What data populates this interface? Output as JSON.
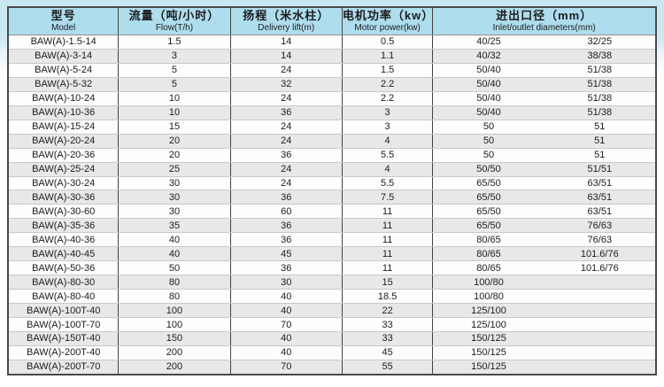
{
  "colors": {
    "header_bg": "#aedded",
    "row_white_bg": "#fdfdfd",
    "row_gray_bg": "#e8e8e8",
    "grid_dark": "#424242",
    "grid_light": "#c9c9c9",
    "outer_border": "#4a4a4a",
    "page_top_tint": "#c9e7f3"
  },
  "table": {
    "columns": [
      {
        "id": "model",
        "zh": "型号",
        "en": "Model"
      },
      {
        "id": "flow",
        "zh": "流量（吨/小时）",
        "en": "Flow(T/h)"
      },
      {
        "id": "lift",
        "zh": "扬程（米水柱）",
        "en": "Delivery lift(m)"
      },
      {
        "id": "power",
        "zh": "电机功率（kw）",
        "en": "Motor power(kw)"
      },
      {
        "id": "inout",
        "zh": "进出口径（mm）",
        "en": "Inlet/outlet  diameters(mm)"
      }
    ],
    "rows": [
      {
        "model": "BAW(A)-1.5-14",
        "flow": "1.5",
        "lift": "14",
        "power": "0.5",
        "inlet": "40/25",
        "outlet": "32/25"
      },
      {
        "model": "BAW(A)-3-14",
        "flow": "3",
        "lift": "14",
        "power": "1.1",
        "inlet": "40/32",
        "outlet": "38/38"
      },
      {
        "model": "BAW(A)-5-24",
        "flow": "5",
        "lift": "24",
        "power": "1.5",
        "inlet": "50/40",
        "outlet": "51/38"
      },
      {
        "model": "BAW(A)-5-32",
        "flow": "5",
        "lift": "32",
        "power": "2.2",
        "inlet": "50/40",
        "outlet": "51/38"
      },
      {
        "model": "BAW(A)-10-24",
        "flow": "10",
        "lift": "24",
        "power": "2.2",
        "inlet": "50/40",
        "outlet": "51/38"
      },
      {
        "model": "BAW(A)-10-36",
        "flow": "10",
        "lift": "36",
        "power": "3",
        "inlet": "50/40",
        "outlet": "51/38"
      },
      {
        "model": "BAW(A)-15-24",
        "flow": "15",
        "lift": "24",
        "power": "3",
        "inlet": "50",
        "outlet": "51"
      },
      {
        "model": "BAW(A)-20-24",
        "flow": "20",
        "lift": "24",
        "power": "4",
        "inlet": "50",
        "outlet": "51"
      },
      {
        "model": "BAW(A)-20-36",
        "flow": "20",
        "lift": "36",
        "power": "5.5",
        "inlet": "50",
        "outlet": "51"
      },
      {
        "model": "BAW(A)-25-24",
        "flow": "25",
        "lift": "24",
        "power": "4",
        "inlet": "50/50",
        "outlet": "51/51"
      },
      {
        "model": "BAW(A)-30-24",
        "flow": "30",
        "lift": "24",
        "power": "5.5",
        "inlet": "65/50",
        "outlet": "63/51"
      },
      {
        "model": "BAW(A)-30-36",
        "flow": "30",
        "lift": "36",
        "power": "7.5",
        "inlet": "65/50",
        "outlet": "63/51"
      },
      {
        "model": "BAW(A)-30-60",
        "flow": "30",
        "lift": "60",
        "power": "11",
        "inlet": "65/50",
        "outlet": "63/51"
      },
      {
        "model": "BAW(A)-35-36",
        "flow": "35",
        "lift": "36",
        "power": "11",
        "inlet": "65/50",
        "outlet": "76/63"
      },
      {
        "model": "BAW(A)-40-36",
        "flow": "40",
        "lift": "36",
        "power": "11",
        "inlet": "80/65",
        "outlet": "76/63"
      },
      {
        "model": "BAW(A)-40-45",
        "flow": "40",
        "lift": "45",
        "power": "11",
        "inlet": "80/65",
        "outlet": "101.6/76"
      },
      {
        "model": "BAW(A)-50-36",
        "flow": "50",
        "lift": "36",
        "power": "11",
        "inlet": "80/65",
        "outlet": "101.6/76"
      },
      {
        "model": "BAW(A)-80-30",
        "flow": "80",
        "lift": "30",
        "power": "15",
        "inlet": "100/80",
        "outlet": ""
      },
      {
        "model": "BAW(A)-80-40",
        "flow": "80",
        "lift": "40",
        "power": "18.5",
        "inlet": "100/80",
        "outlet": ""
      },
      {
        "model": "BAW(A)-100T-40",
        "flow": "100",
        "lift": "40",
        "power": "22",
        "inlet": "125/100",
        "outlet": ""
      },
      {
        "model": "BAW(A)-100T-70",
        "flow": "100",
        "lift": "70",
        "power": "33",
        "inlet": "125/100",
        "outlet": ""
      },
      {
        "model": "BAW(A)-150T-40",
        "flow": "150",
        "lift": "40",
        "power": "33",
        "inlet": "150/125",
        "outlet": ""
      },
      {
        "model": "BAW(A)-200T-40",
        "flow": "200",
        "lift": "40",
        "power": "45",
        "inlet": "150/125",
        "outlet": ""
      },
      {
        "model": "BAW(A)-200T-70",
        "flow": "200",
        "lift": "70",
        "power": "55",
        "inlet": "150/125",
        "outlet": ""
      }
    ]
  }
}
